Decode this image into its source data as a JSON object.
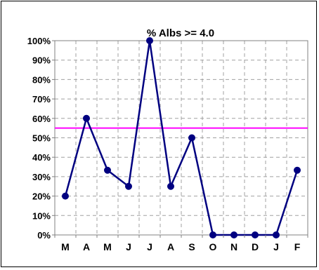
{
  "chart_data": {
    "type": "line",
    "title": "%  Albs >= 4.0",
    "categories": [
      "M",
      "A",
      "M",
      "J",
      "J",
      "A",
      "S",
      "O",
      "N",
      "D",
      "J",
      "F"
    ],
    "series": [
      {
        "values": [
          20,
          60,
          33.3,
          25,
          100,
          25,
          50,
          0,
          0,
          0,
          0,
          33.3
        ],
        "color": "#000080"
      }
    ],
    "target_line": {
      "value": 55,
      "color": "#ff00ff"
    },
    "ylim": [
      0,
      100
    ],
    "y_ticks": [
      "0%",
      "10%",
      "20%",
      "30%",
      "40%",
      "50%",
      "60%",
      "70%",
      "80%",
      "90%",
      "100%"
    ],
    "grid": true,
    "legend": "none"
  }
}
